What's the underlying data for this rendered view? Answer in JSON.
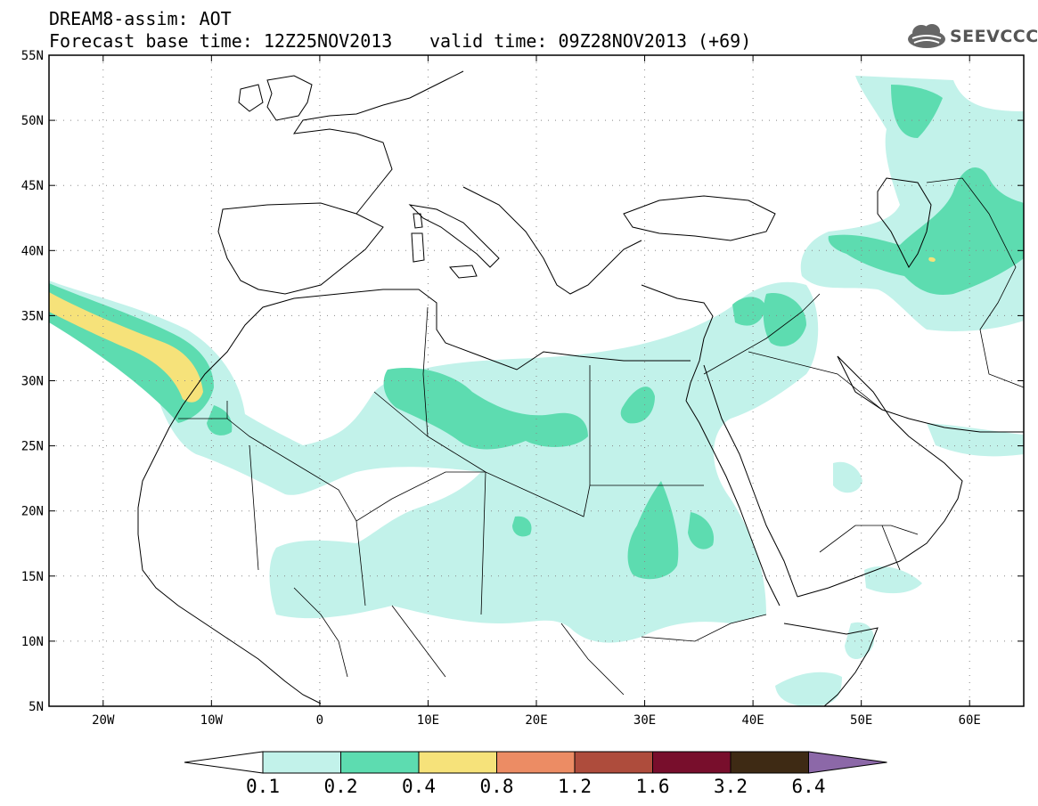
{
  "header": {
    "title": "DREAM8-assim: AOT",
    "base_time": "Forecast base time: 12Z25NOV2013",
    "valid_time": "valid time: 09Z28NOV2013 (+69)"
  },
  "logo": {
    "text": "SEEVCCC",
    "icon": "cloud-icon"
  },
  "map": {
    "lon_range": [
      -25,
      65
    ],
    "lat_range": [
      5,
      55
    ],
    "lat_ticks": [
      {
        "lat": 55,
        "label": "55N"
      },
      {
        "lat": 50,
        "label": "50N"
      },
      {
        "lat": 45,
        "label": "45N"
      },
      {
        "lat": 40,
        "label": "40N"
      },
      {
        "lat": 35,
        "label": "35N"
      },
      {
        "lat": 30,
        "label": "30N"
      },
      {
        "lat": 25,
        "label": "25N"
      },
      {
        "lat": 20,
        "label": "20N"
      },
      {
        "lat": 15,
        "label": "15N"
      },
      {
        "lat": 10,
        "label": "10N"
      },
      {
        "lat": 5,
        "label": "5N"
      }
    ],
    "lon_ticks": [
      {
        "lon": -20,
        "label": "20W"
      },
      {
        "lon": -10,
        "label": "10W"
      },
      {
        "lon": 0,
        "label": "0"
      },
      {
        "lon": 10,
        "label": "10E"
      },
      {
        "lon": 20,
        "label": "20E"
      },
      {
        "lon": 30,
        "label": "30E"
      },
      {
        "lon": 40,
        "label": "40E"
      },
      {
        "lon": 50,
        "label": "50E"
      },
      {
        "lon": 60,
        "label": "60E"
      }
    ],
    "gridlines": "dotted"
  },
  "colorbar": {
    "levels": [
      "0.1",
      "0.2",
      "0.4",
      "0.8",
      "1.2",
      "1.6",
      "3.2",
      "6.4"
    ],
    "colors": [
      "#ffffff",
      "#c2f2ea",
      "#5ddcb0",
      "#f6e27a",
      "#ec8c64",
      "#ae4c3c",
      "#780e2c",
      "#3e2a14",
      "#8c68a8"
    ]
  }
}
